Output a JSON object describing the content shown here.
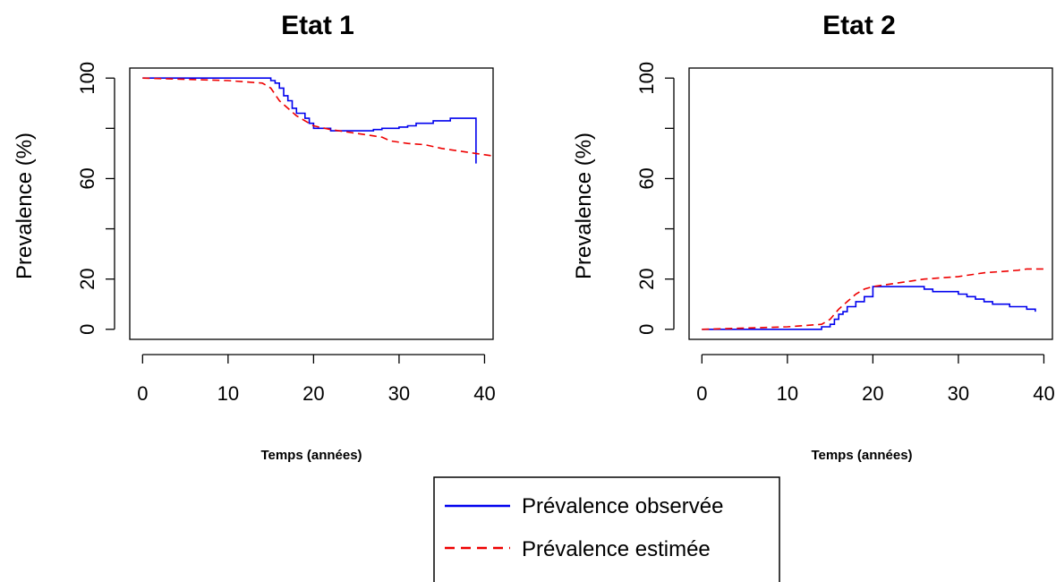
{
  "chart_data": [
    {
      "type": "line",
      "title": "Etat 1",
      "xlabel": "Temps (années)",
      "ylabel": "Prevalence (%)",
      "xlim": [
        -1.5,
        41
      ],
      "ylim": [
        -4,
        104
      ],
      "xticks": [
        "0",
        "10",
        "20",
        "30",
        "40"
      ],
      "yticks": [
        "0",
        "20",
        "60",
        "100"
      ],
      "grid": false,
      "series": [
        {
          "name": "Prévalence observée",
          "color": "#0000ee",
          "dash": "solid",
          "x": [
            0,
            14,
            15,
            15.5,
            16,
            16.5,
            17,
            17.5,
            18,
            19,
            19.5,
            20,
            21,
            22,
            23,
            24,
            25,
            26,
            27,
            28,
            29,
            30,
            31,
            32,
            33,
            34,
            35,
            36,
            37,
            38,
            38.5,
            39
          ],
          "y": [
            100,
            100,
            99,
            98,
            96,
            93,
            91,
            88,
            86,
            84,
            82,
            80,
            80,
            79,
            79,
            79,
            79,
            79,
            79.5,
            80,
            80,
            80.5,
            81,
            82,
            82,
            83,
            83,
            84,
            84,
            84,
            84,
            66
          ]
        },
        {
          "name": "Prévalence estimée",
          "color": "#ee0000",
          "dash": "dashed",
          "x": [
            0,
            5,
            10,
            14,
            15,
            16,
            17,
            18,
            19,
            20,
            22,
            24,
            26,
            28,
            29,
            31,
            33,
            35,
            37,
            39,
            41
          ],
          "y": [
            100,
            99.5,
            99,
            98,
            96,
            91,
            88,
            85,
            83,
            81,
            79.5,
            78.5,
            77.5,
            76.5,
            75,
            74,
            73.5,
            72,
            71,
            70,
            69
          ]
        }
      ]
    },
    {
      "type": "line",
      "title": "Etat 2",
      "xlabel": "Temps (années)",
      "ylabel": "Prevalence (%)",
      "xlim": [
        -1.5,
        41
      ],
      "ylim": [
        -4,
        104
      ],
      "xticks": [
        "0",
        "10",
        "20",
        "30",
        "40"
      ],
      "yticks": [
        "0",
        "20",
        "60",
        "100"
      ],
      "grid": false,
      "series": [
        {
          "name": "Prévalence observée",
          "color": "#0000ee",
          "dash": "solid",
          "x": [
            0,
            13.5,
            14,
            15,
            15.5,
            16,
            16.5,
            17,
            18,
            19,
            20,
            21,
            22,
            23,
            24,
            25,
            26,
            27,
            28,
            29,
            30,
            31,
            32,
            33,
            34,
            35,
            36,
            37,
            38,
            39
          ],
          "y": [
            0,
            0,
            1,
            2,
            4,
            6,
            7,
            9,
            11,
            13,
            17,
            17,
            17,
            17,
            17,
            17,
            16,
            15,
            15,
            15,
            14,
            13,
            12,
            11,
            10,
            10,
            9,
            9,
            8,
            7
          ]
        },
        {
          "name": "Prévalence estimée",
          "color": "#ee0000",
          "dash": "dashed",
          "x": [
            0,
            5,
            10,
            14,
            15,
            16,
            17,
            18,
            19,
            20,
            22,
            24,
            26,
            28,
            30,
            32,
            33,
            35,
            37,
            38,
            40
          ],
          "y": [
            0,
            0.5,
            1,
            2,
            4,
            8,
            11,
            14,
            16,
            17,
            18,
            19,
            20,
            20.5,
            21,
            22,
            22.5,
            23,
            23.5,
            24,
            24
          ]
        }
      ]
    }
  ],
  "legend": {
    "items": [
      {
        "label": "Prévalence observée",
        "color": "#0000ee",
        "dash": "solid"
      },
      {
        "label": "Prévalence estimée",
        "color": "#ee0000",
        "dash": "dashed"
      }
    ]
  }
}
